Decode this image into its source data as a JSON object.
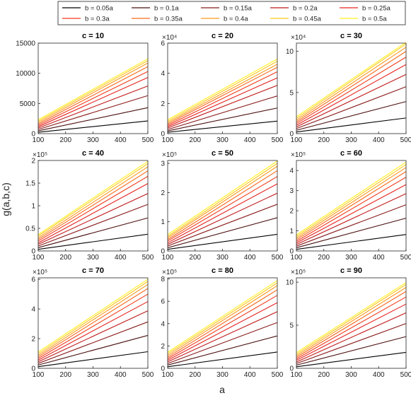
{
  "chart_data": {
    "type": "line",
    "ylabel": "g(a,b,c)",
    "xlabel": "a",
    "legend": {
      "placement": "top",
      "entries": [
        "b = 0.05a",
        "b = 0.1a",
        "b = 0.15a",
        "b = 0.2a",
        "b = 0.25a",
        "b = 0.3a",
        "b = 0.35a",
        "b = 0.4a",
        "b = 0.45a",
        "b = 0.5a"
      ],
      "colors": [
        "#000000",
        "#4a1010",
        "#8a1a1a",
        "#c01818",
        "#e52420",
        "#f23c1c",
        "#f76a1c",
        "#fb9a1c",
        "#fdc81e",
        "#fff020"
      ]
    },
    "shared_x": [
      100,
      500
    ],
    "panels": [
      {
        "title": "c = 10",
        "xlim": [
          100,
          500
        ],
        "ylim": [
          0,
          15000
        ],
        "yticks": [
          0,
          5000,
          10000,
          15000
        ],
        "ytick_labels": [
          "0",
          "5000",
          "10000",
          "15000"
        ],
        "exponent": "",
        "series_start": [
          230,
          460,
          690,
          920,
          1150,
          1380,
          1610,
          1840,
          2070,
          2300
        ],
        "series_end": [
          2100,
          4300,
          6300,
          7900,
          9300,
          10300,
          11100,
          11700,
          12100,
          12400
        ]
      },
      {
        "title": "c = 20",
        "xlim": [
          100,
          500
        ],
        "ylim": [
          0,
          6
        ],
        "yticks": [
          0,
          2,
          4,
          6
        ],
        "ytick_labels": [
          "0",
          "2",
          "4",
          "6"
        ],
        "exponent": "×10⁴",
        "series_start": [
          0.09,
          0.18,
          0.27,
          0.37,
          0.46,
          0.55,
          0.64,
          0.73,
          0.82,
          0.92
        ],
        "series_end": [
          0.83,
          1.7,
          2.5,
          3.2,
          3.7,
          4.1,
          4.4,
          4.6,
          4.8,
          4.95
        ]
      },
      {
        "title": "c = 30",
        "xlim": [
          100,
          500
        ],
        "ylim": [
          0,
          11
        ],
        "yticks": [
          0,
          5,
          10
        ],
        "ytick_labels": [
          "0",
          "5",
          "10"
        ],
        "exponent": "×10⁴",
        "series_start": [
          0.2,
          0.41,
          0.61,
          0.82,
          1.02,
          1.23,
          1.43,
          1.64,
          1.84,
          2.05
        ],
        "series_end": [
          1.9,
          3.9,
          5.7,
          7.2,
          8.4,
          9.3,
          10.0,
          10.5,
          10.9,
          11.1
        ]
      },
      {
        "title": "c = 40",
        "xlim": [
          100,
          500
        ],
        "ylim": [
          0,
          2
        ],
        "yticks": [
          0,
          0.5,
          1,
          1.5,
          2
        ],
        "ytick_labels": [
          "0",
          "0.5",
          "1",
          "1.5",
          "2"
        ],
        "exponent": "×10⁵",
        "series_start": [
          0.036,
          0.073,
          0.11,
          0.146,
          0.18,
          0.22,
          0.255,
          0.29,
          0.33,
          0.36
        ],
        "series_end": [
          0.37,
          0.73,
          1.03,
          1.27,
          1.49,
          1.65,
          1.77,
          1.86,
          1.93,
          1.98
        ]
      },
      {
        "title": "c = 50",
        "xlim": [
          100,
          500
        ],
        "ylim": [
          0,
          3.1
        ],
        "yticks": [
          0,
          1,
          2,
          3
        ],
        "ytick_labels": [
          "0",
          "1",
          "2",
          "3"
        ],
        "exponent": "×10⁵",
        "series_start": [
          0.056,
          0.11,
          0.17,
          0.225,
          0.28,
          0.34,
          0.39,
          0.45,
          0.5,
          0.56
        ],
        "series_end": [
          0.57,
          1.14,
          1.6,
          1.98,
          2.3,
          2.55,
          2.75,
          2.9,
          3.0,
          3.08
        ]
      },
      {
        "title": "c = 60",
        "xlim": [
          100,
          500
        ],
        "ylim": [
          0,
          4.5
        ],
        "yticks": [
          0,
          1,
          2,
          3,
          4
        ],
        "ytick_labels": [
          "0",
          "1",
          "2",
          "3",
          "4"
        ],
        "exponent": "×10⁵",
        "series_start": [
          0.08,
          0.16,
          0.24,
          0.32,
          0.4,
          0.48,
          0.56,
          0.64,
          0.72,
          0.8
        ],
        "series_end": [
          0.82,
          1.63,
          2.3,
          2.85,
          3.3,
          3.67,
          3.95,
          4.15,
          4.3,
          4.42
        ]
      },
      {
        "title": "c = 70",
        "xlim": [
          100,
          500
        ],
        "ylim": [
          0,
          6.1
        ],
        "yticks": [
          0,
          2,
          4,
          6
        ],
        "ytick_labels": [
          "0",
          "2",
          "4",
          "6"
        ],
        "exponent": "×10⁵",
        "series_start": [
          0.11,
          0.22,
          0.33,
          0.44,
          0.55,
          0.66,
          0.77,
          0.88,
          0.99,
          1.1
        ],
        "series_end": [
          1.12,
          2.22,
          3.13,
          3.88,
          4.5,
          5.0,
          5.38,
          5.65,
          5.85,
          6.0
        ]
      },
      {
        "title": "c = 80",
        "xlim": [
          100,
          500
        ],
        "ylim": [
          0,
          8.1
        ],
        "yticks": [
          0,
          2,
          4,
          6,
          8
        ],
        "ytick_labels": [
          "0",
          "2",
          "4",
          "6",
          "8"
        ],
        "exponent": "×10⁵",
        "series_start": [
          0.14,
          0.29,
          0.43,
          0.58,
          0.72,
          0.86,
          1.0,
          1.15,
          1.3,
          1.44
        ],
        "series_end": [
          1.46,
          2.9,
          4.1,
          5.07,
          5.88,
          6.53,
          7.03,
          7.4,
          7.65,
          7.85
        ]
      },
      {
        "title": "c = 90",
        "xlim": [
          100,
          500
        ],
        "ylim": [
          0,
          10.5
        ],
        "yticks": [
          0,
          5,
          10
        ],
        "ytick_labels": [
          "0",
          "5",
          "10"
        ],
        "exponent": "×10⁵",
        "series_start": [
          0.18,
          0.37,
          0.55,
          0.73,
          0.92,
          1.1,
          1.28,
          1.46,
          1.64,
          1.83
        ],
        "series_end": [
          1.85,
          3.68,
          5.2,
          6.44,
          7.46,
          8.28,
          8.92,
          9.38,
          9.72,
          9.95
        ]
      }
    ],
    "xticks": [
      100,
      200,
      300,
      400,
      500
    ],
    "xtick_labels": [
      "100",
      "200",
      "300",
      "400",
      "500"
    ],
    "grid": false
  }
}
